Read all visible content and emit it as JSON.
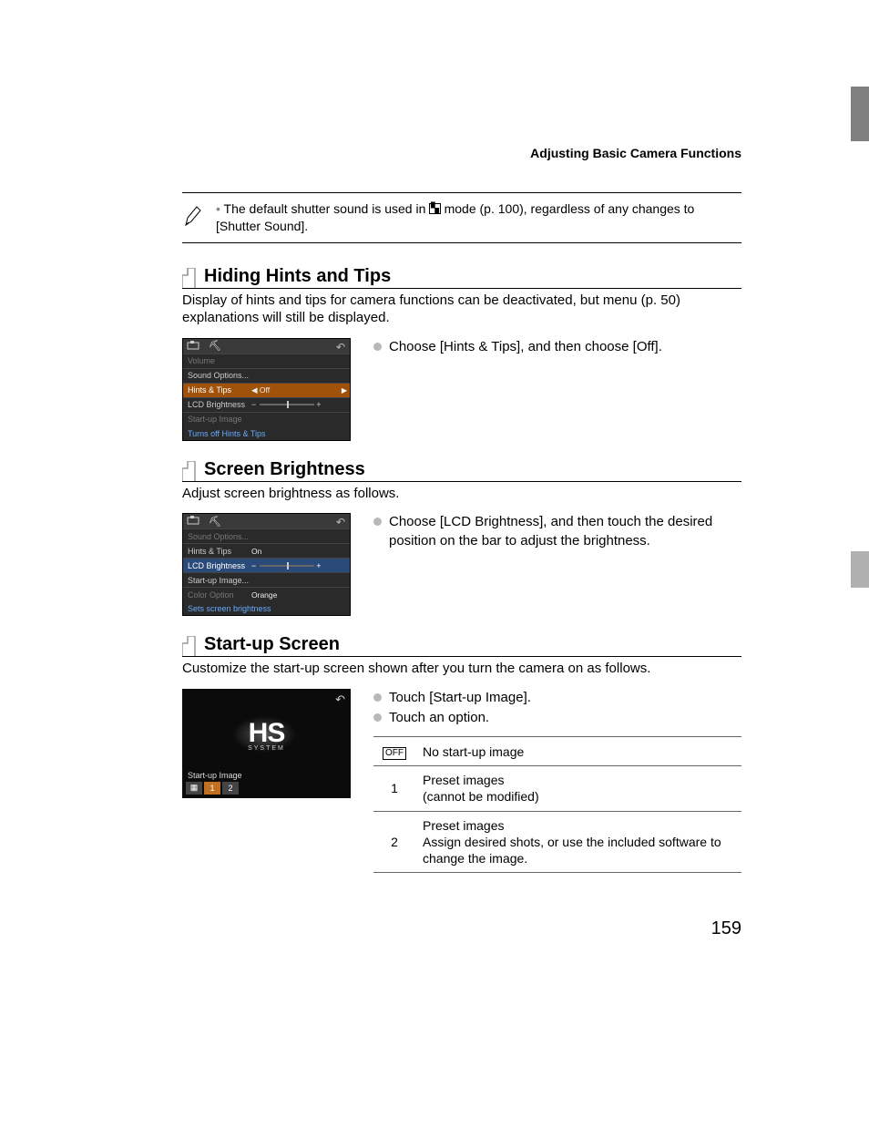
{
  "header": "Adjusting Basic Camera Functions",
  "note": {
    "text_before": "The default shutter sound is used in ",
    "mode_glyph": "▚",
    "text_after": " mode (p. 100), regardless of any changes to [Shutter Sound]."
  },
  "section1": {
    "title": "Hiding Hints and Tips",
    "intro": "Display of hints and tips for camera functions can be deactivated, but menu (p. 50) explanations will still be displayed.",
    "instruction": "Choose [Hints & Tips], and then choose [Off].",
    "screenshot": {
      "rows": [
        {
          "label": "Volume",
          "val": "",
          "dim": true
        },
        {
          "label": "Sound Options...",
          "val": ""
        },
        {
          "label": "Hints & Tips",
          "val": "◀ Off",
          "highlight": true,
          "arrows": true
        },
        {
          "label": "LCD Brightness",
          "val": "",
          "slider": true
        },
        {
          "label": "Start-up Image",
          "val": "",
          "dim": true
        }
      ],
      "footer": "Turns off Hints & Tips"
    }
  },
  "section2": {
    "title": "Screen Brightness",
    "intro": "Adjust screen brightness as follows.",
    "instruction": "Choose [LCD Brightness], and then touch the desired position on the bar to adjust the brightness.",
    "screenshot": {
      "rows": [
        {
          "label": "Sound Options...",
          "val": "",
          "dim": true
        },
        {
          "label": "Hints & Tips",
          "val": "On"
        },
        {
          "label": "LCD Brightness",
          "val": "",
          "slider": true,
          "highlight": "blue"
        },
        {
          "label": "Start-up Image...",
          "val": ""
        },
        {
          "label": "Color Option",
          "val": "Orange",
          "dim": true
        }
      ],
      "footer": "Sets screen brightness"
    }
  },
  "section3": {
    "title": "Start-up Screen",
    "intro": "Customize the start-up screen shown after you turn the camera on as follows.",
    "instructions": [
      "Touch [Start-up Image].",
      "Touch an option."
    ],
    "startup_label": "Start-up Image",
    "startup_opts": [
      "▦",
      "1",
      "2"
    ],
    "startup_selected_index": 1,
    "hs_text": "HS",
    "hs_sub": "SYSTEM",
    "table": [
      {
        "key_type": "off",
        "key": "OFF",
        "desc": "No start-up image"
      },
      {
        "key_type": "num",
        "key": "1",
        "desc": "Preset images\n(cannot be modified)"
      },
      {
        "key_type": "num",
        "key": "2",
        "desc": "Preset images\nAssign desired shots, or use the included software to change the image."
      }
    ]
  },
  "page_number": "159",
  "colors": {
    "text": "#000000",
    "highlight_orange": "#a0520a",
    "highlight_blue": "#2a4a7a",
    "footer_blue": "#66aaff",
    "bullet_gray": "#b8b8b8",
    "side_gray": "#808080"
  }
}
